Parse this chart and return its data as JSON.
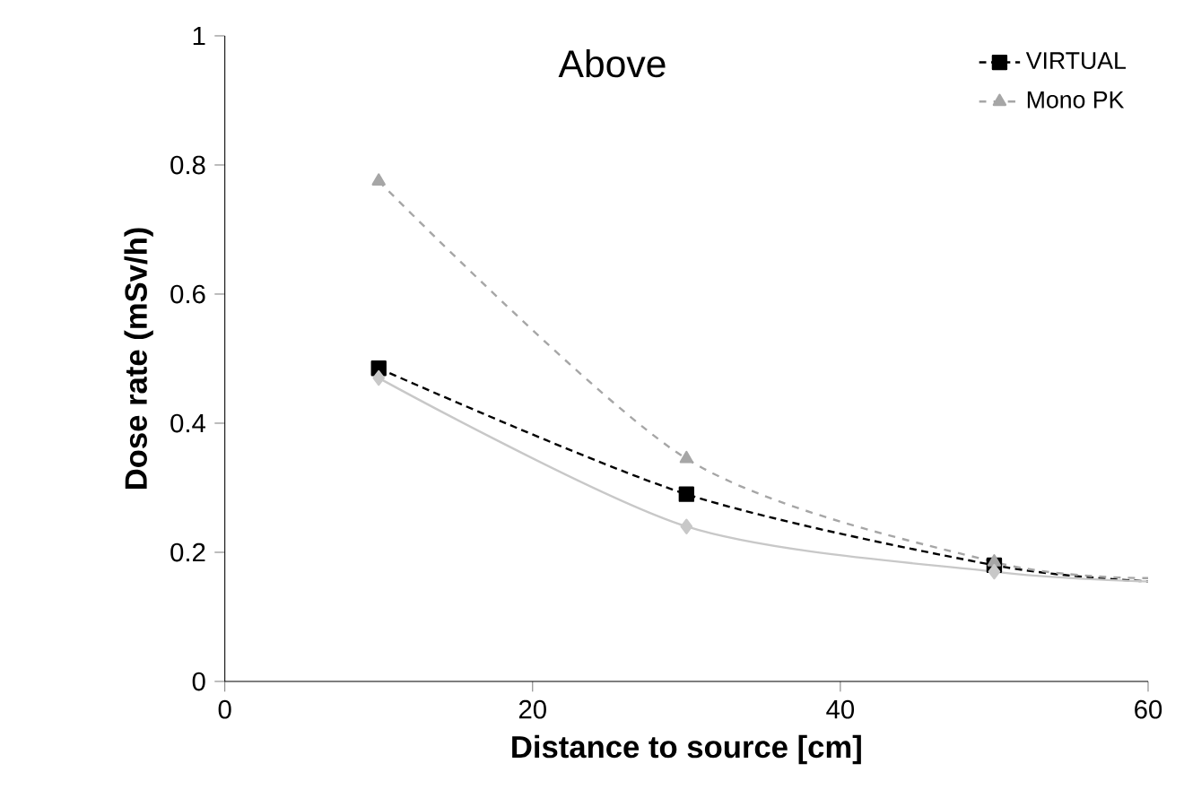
{
  "chart_data": {
    "type": "line",
    "title": "Above",
    "xlabel": "Distance to source [cm]",
    "ylabel": "Dose rate (mSv/h)",
    "xlim": [
      0,
      60
    ],
    "xticks": [
      0,
      20,
      40,
      60
    ],
    "ylim": [
      0,
      1
    ],
    "yticks": [
      0,
      0.2,
      0.4,
      0.6,
      0.8,
      1
    ],
    "grid": false,
    "legend": "top right",
    "series": [
      {
        "color": "#c8c8c8",
        "marker": "diamond",
        "line_style": "solid",
        "x": [
          10,
          30,
          50,
          60
        ],
        "values": [
          0.47,
          0.24,
          0.17,
          0.155
        ]
      },
      {
        "name": "VIRTUAL",
        "color": "#000000",
        "marker": "square",
        "line_style": "dotted",
        "x": [
          10,
          30,
          50,
          60
        ],
        "values": [
          0.485,
          0.29,
          0.18,
          0.155
        ]
      },
      {
        "name": "Mono PK",
        "color": "#a6a6a6",
        "marker": "triangle",
        "line_style": "dashed",
        "x": [
          10,
          30,
          50,
          60
        ],
        "values": [
          0.775,
          0.345,
          0.185,
          0.16
        ]
      }
    ]
  }
}
